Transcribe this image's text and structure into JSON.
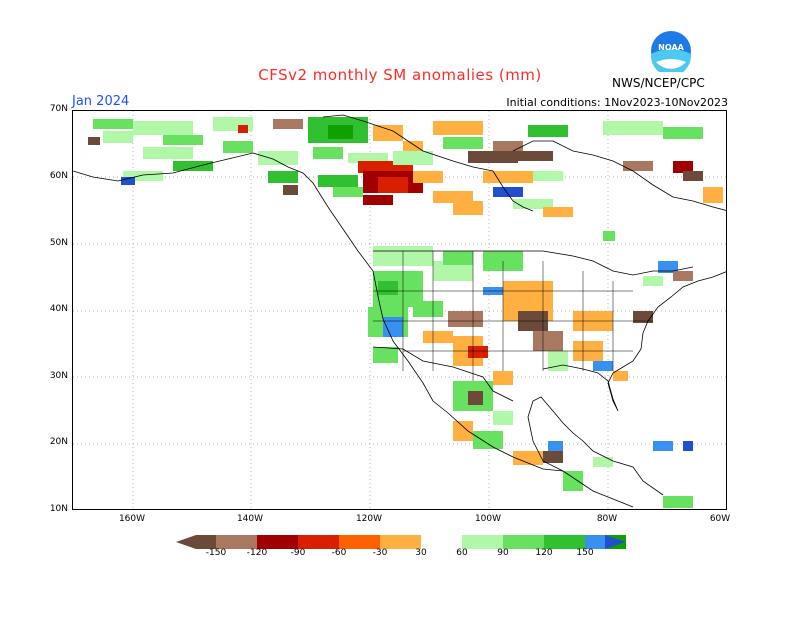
{
  "title": "CFSv2 monthly SM anomalies (mm)",
  "month": "Jan 2024",
  "initial_conditions": "Initial conditions: 1Nov2023-10Nov2023",
  "agency": "NWS/NCEP/CPC",
  "logo_text": "NOAA",
  "colors": {
    "title": "#ff2a2a",
    "month": "#1e50ff",
    "dry_strong": "#6b4a3a",
    "dry_150": "#a87860",
    "dry_120": "#a00000",
    "dry_90": "#d82000",
    "dry_60": "#ff6000",
    "dry_30": "#ffb040",
    "wet_30": "#b0f8a8",
    "wet_60": "#68e060",
    "wet_90": "#30c030",
    "wet_120": "#10a000",
    "wet_150": "#3890f0",
    "wet_strong": "#2050d0"
  },
  "axes": {
    "lat_labels": [
      "70N",
      "60N",
      "50N",
      "40N",
      "30N",
      "20N",
      "10N"
    ],
    "lon_labels": [
      "160W",
      "140W",
      "120W",
      "100W",
      "80W",
      "60W"
    ]
  },
  "legend": {
    "labels": [
      "-150",
      "-120",
      "-90",
      "-60",
      "-30",
      "30",
      "60",
      "90",
      "120",
      "150"
    ]
  }
}
